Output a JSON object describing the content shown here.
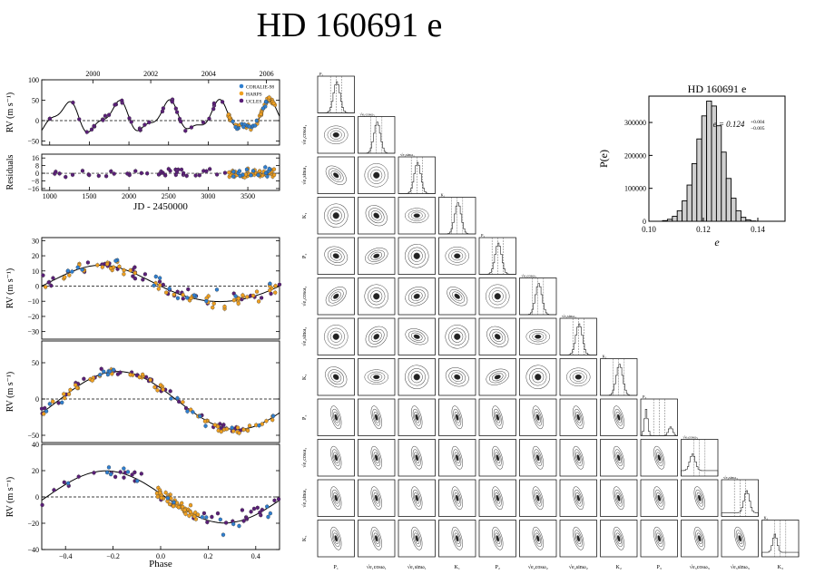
{
  "page": {
    "title": "HD 160691 e"
  },
  "panels": {
    "years": [
      "2000",
      "2002",
      "2004",
      "2006"
    ],
    "rv_label": "RV (m s⁻¹)",
    "residuals_label": "Residuals",
    "jd_label": "JD - 2450000",
    "phase_label": "Phase",
    "legend": [
      "CORALIE-98",
      "HARPS",
      "UCLES"
    ]
  },
  "colors": {
    "coralie": "#2f7fd0",
    "harps": "#f0a020",
    "ucles": "#5a1e78"
  },
  "chart_data": [
    {
      "type": "scatter",
      "name": "rv-timeseries",
      "xlabel": "JD - 2450000",
      "ylabel": "RV (m s⁻¹)",
      "xlim": [
        900,
        3900
      ],
      "ylim": [
        -60,
        100
      ],
      "xticks": [
        1000,
        1500,
        2000,
        2500,
        3000,
        3500
      ],
      "yticks": [
        -50,
        0,
        50,
        100
      ],
      "top_axis_years": [
        "2000",
        "2002",
        "2004",
        "2006"
      ],
      "legend": [
        "CORALIE-98",
        "HARPS",
        "UCLES"
      ]
    },
    {
      "type": "scatter",
      "name": "residuals",
      "ylabel": "Residuals",
      "xlim": [
        900,
        3900
      ],
      "ylim": [
        -18,
        20
      ],
      "yticks": [
        -16,
        -8,
        0,
        8,
        16
      ]
    },
    {
      "type": "scatter",
      "name": "phase-fold-1",
      "ylabel": "RV (m s⁻¹)",
      "xlim": [
        -0.5,
        0.5
      ],
      "ylim": [
        -35,
        32
      ],
      "yticks": [
        -30,
        -20,
        -10,
        0,
        10,
        20,
        30
      ]
    },
    {
      "type": "scatter",
      "name": "phase-fold-2",
      "ylabel": "RV (m s⁻¹)",
      "xlim": [
        -0.5,
        0.5
      ],
      "ylim": [
        -60,
        80
      ],
      "yticks": [
        -50,
        0,
        50
      ]
    },
    {
      "type": "scatter",
      "name": "phase-fold-3",
      "xlabel": "Phase",
      "ylabel": "RV (m s⁻¹)",
      "xlim": [
        -0.5,
        0.5
      ],
      "ylim": [
        -40,
        40
      ],
      "xticks": [
        -0.4,
        -0.2,
        0.0,
        0.2,
        0.4
      ],
      "xticklabels": [
        "−0.4",
        "−0.2",
        "0.0",
        "0.2",
        "0.4"
      ],
      "yticks": [
        -40,
        -20,
        0,
        20,
        40
      ]
    },
    {
      "type": "corner",
      "name": "posterior-corner",
      "params": [
        "P₁",
        "√e₁cosω₁",
        "√e₁sinω₁",
        "K₁",
        "P₂",
        "√e₂cosω₂",
        "√e₂sinω₂",
        "K₂",
        "P₃",
        "√e₃cosω₃",
        "√e₃sinω₃",
        "K₃"
      ]
    },
    {
      "type": "bar",
      "name": "eccentricity-histogram",
      "title": "HD 160691 e",
      "xlabel": "e",
      "ylabel": "P(e)",
      "xlim": [
        0.1,
        0.15
      ],
      "ylim": [
        0,
        380000
      ],
      "xticks": [
        0.1,
        0.12,
        0.14
      ],
      "xticklabels": [
        "0.10",
        "0.12",
        "0.14"
      ],
      "yticks": [
        0,
        100000,
        200000,
        300000
      ],
      "yticklabels": [
        "0",
        "100000",
        "200000",
        "300000"
      ],
      "annotation": "e = 0.124",
      "annotation_up": "+0.004",
      "annotation_down": "−0.005",
      "bin_start": 0.105,
      "bin_width": 0.0018,
      "values": [
        2000,
        6000,
        15000,
        32000,
        62000,
        110000,
        175000,
        250000,
        320000,
        365000,
        350000,
        290000,
        210000,
        130000,
        70000,
        32000,
        12000,
        4000,
        1000
      ]
    }
  ]
}
